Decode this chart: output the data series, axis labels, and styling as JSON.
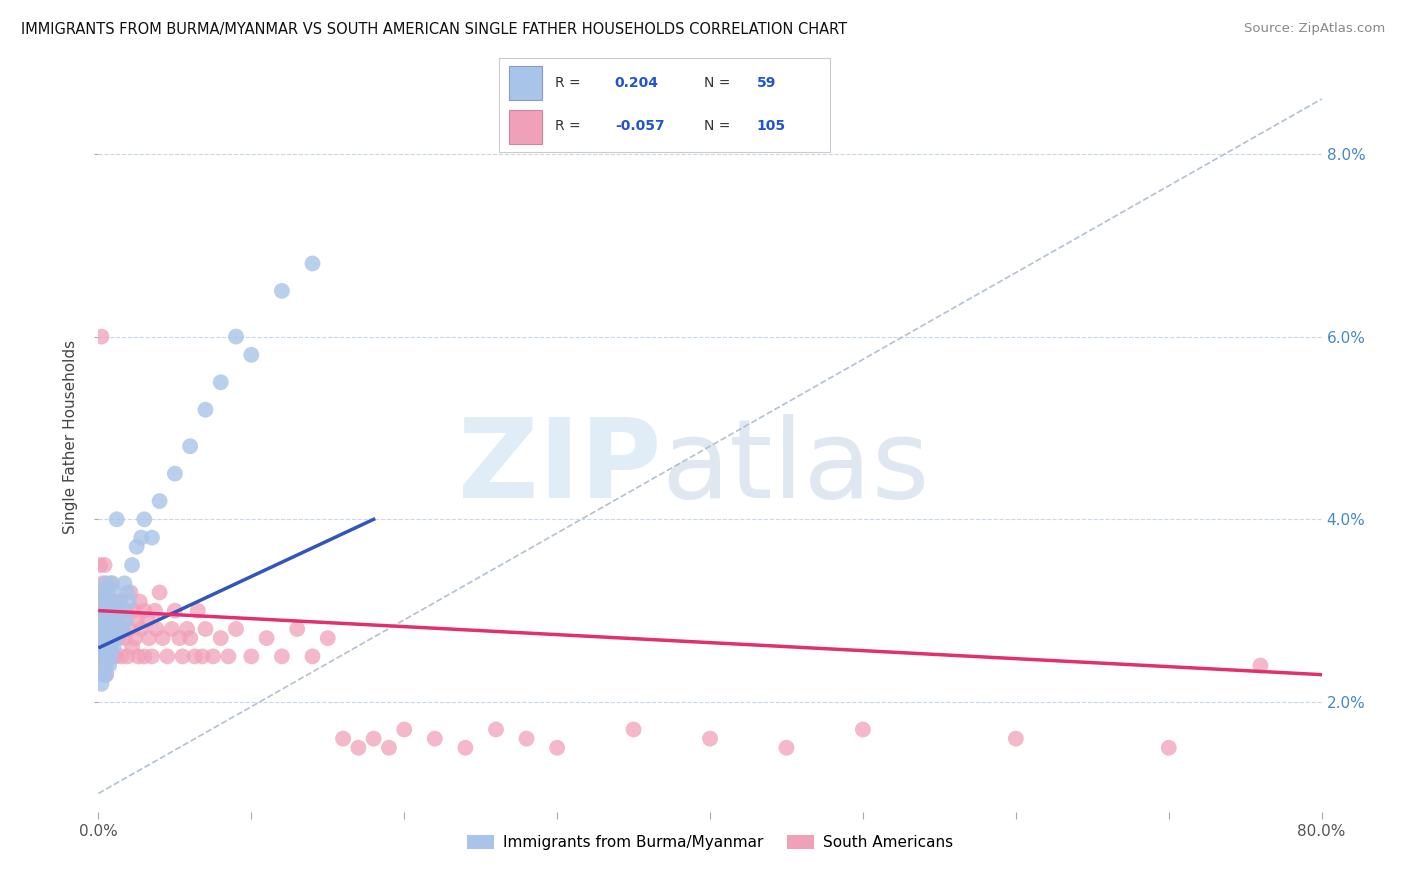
{
  "title": "IMMIGRANTS FROM BURMA/MYANMAR VS SOUTH AMERICAN SINGLE FATHER HOUSEHOLDS CORRELATION CHART",
  "source": "Source: ZipAtlas.com",
  "ylabel": "Single Father Households",
  "yticks": [
    "2.0%",
    "4.0%",
    "6.0%",
    "8.0%"
  ],
  "ytick_values": [
    0.02,
    0.04,
    0.06,
    0.08
  ],
  "xrange": [
    0.0,
    0.8
  ],
  "yrange": [
    0.008,
    0.09
  ],
  "legend": {
    "blue_label": "Immigrants from Burma/Myanmar",
    "pink_label": "South Americans",
    "blue_R": "0.204",
    "blue_N": "59",
    "pink_R": "-0.057",
    "pink_N": "105"
  },
  "blue_color": "#a8c4e8",
  "pink_color": "#f0a0b8",
  "blue_line_color": "#3355bb",
  "pink_line_color": "#e03070",
  "blue_scatter_x": [
    0.001,
    0.001,
    0.002,
    0.002,
    0.002,
    0.003,
    0.003,
    0.003,
    0.003,
    0.004,
    0.004,
    0.004,
    0.004,
    0.005,
    0.005,
    0.005,
    0.005,
    0.005,
    0.006,
    0.006,
    0.006,
    0.006,
    0.007,
    0.007,
    0.007,
    0.007,
    0.008,
    0.008,
    0.008,
    0.009,
    0.009,
    0.01,
    0.01,
    0.01,
    0.011,
    0.011,
    0.012,
    0.013,
    0.014,
    0.015,
    0.016,
    0.017,
    0.018,
    0.019,
    0.02,
    0.022,
    0.025,
    0.028,
    0.03,
    0.035,
    0.04,
    0.05,
    0.06,
    0.07,
    0.08,
    0.09,
    0.1,
    0.12,
    0.14
  ],
  "blue_scatter_y": [
    0.028,
    0.025,
    0.032,
    0.027,
    0.022,
    0.03,
    0.026,
    0.023,
    0.029,
    0.027,
    0.025,
    0.031,
    0.028,
    0.024,
    0.029,
    0.026,
    0.023,
    0.033,
    0.025,
    0.028,
    0.032,
    0.027,
    0.026,
    0.029,
    0.024,
    0.031,
    0.028,
    0.025,
    0.03,
    0.027,
    0.033,
    0.029,
    0.026,
    0.032,
    0.03,
    0.027,
    0.04,
    0.028,
    0.031,
    0.03,
    0.028,
    0.033,
    0.029,
    0.032,
    0.031,
    0.035,
    0.037,
    0.038,
    0.04,
    0.038,
    0.042,
    0.045,
    0.048,
    0.052,
    0.055,
    0.06,
    0.058,
    0.065,
    0.068
  ],
  "pink_scatter_x": [
    0.001,
    0.001,
    0.002,
    0.002,
    0.002,
    0.002,
    0.003,
    0.003,
    0.003,
    0.003,
    0.004,
    0.004,
    0.004,
    0.004,
    0.004,
    0.005,
    0.005,
    0.005,
    0.005,
    0.005,
    0.006,
    0.006,
    0.006,
    0.006,
    0.007,
    0.007,
    0.007,
    0.007,
    0.008,
    0.008,
    0.008,
    0.008,
    0.009,
    0.009,
    0.01,
    0.01,
    0.01,
    0.011,
    0.011,
    0.012,
    0.012,
    0.013,
    0.014,
    0.015,
    0.015,
    0.016,
    0.017,
    0.018,
    0.019,
    0.02,
    0.021,
    0.022,
    0.023,
    0.024,
    0.025,
    0.026,
    0.027,
    0.028,
    0.03,
    0.03,
    0.032,
    0.033,
    0.035,
    0.037,
    0.038,
    0.04,
    0.042,
    0.045,
    0.048,
    0.05,
    0.053,
    0.055,
    0.058,
    0.06,
    0.063,
    0.065,
    0.068,
    0.07,
    0.075,
    0.08,
    0.085,
    0.09,
    0.1,
    0.11,
    0.12,
    0.13,
    0.14,
    0.15,
    0.16,
    0.17,
    0.18,
    0.19,
    0.2,
    0.22,
    0.24,
    0.26,
    0.28,
    0.3,
    0.35,
    0.4,
    0.45,
    0.5,
    0.6,
    0.7,
    0.76
  ],
  "pink_scatter_y": [
    0.035,
    0.028,
    0.032,
    0.027,
    0.03,
    0.06,
    0.025,
    0.031,
    0.028,
    0.033,
    0.027,
    0.024,
    0.03,
    0.028,
    0.035,
    0.026,
    0.029,
    0.023,
    0.031,
    0.028,
    0.025,
    0.03,
    0.027,
    0.032,
    0.028,
    0.025,
    0.031,
    0.029,
    0.026,
    0.03,
    0.027,
    0.033,
    0.025,
    0.03,
    0.028,
    0.031,
    0.027,
    0.029,
    0.025,
    0.03,
    0.028,
    0.027,
    0.031,
    0.028,
    0.025,
    0.029,
    0.027,
    0.03,
    0.025,
    0.028,
    0.032,
    0.026,
    0.03,
    0.027,
    0.029,
    0.025,
    0.031,
    0.028,
    0.03,
    0.025,
    0.029,
    0.027,
    0.025,
    0.03,
    0.028,
    0.032,
    0.027,
    0.025,
    0.028,
    0.03,
    0.027,
    0.025,
    0.028,
    0.027,
    0.025,
    0.03,
    0.025,
    0.028,
    0.025,
    0.027,
    0.025,
    0.028,
    0.025,
    0.027,
    0.025,
    0.028,
    0.025,
    0.027,
    0.016,
    0.015,
    0.016,
    0.015,
    0.017,
    0.016,
    0.015,
    0.017,
    0.016,
    0.015,
    0.017,
    0.016,
    0.015,
    0.017,
    0.016,
    0.015,
    0.024
  ],
  "blue_line_x": [
    0.001,
    0.18
  ],
  "blue_line_y": [
    0.026,
    0.04
  ],
  "pink_line_x": [
    0.001,
    0.8
  ],
  "pink_line_y": [
    0.03,
    0.023
  ],
  "dash_line_x": [
    0.0,
    0.8
  ],
  "dash_line_y": [
    0.01,
    0.086
  ]
}
